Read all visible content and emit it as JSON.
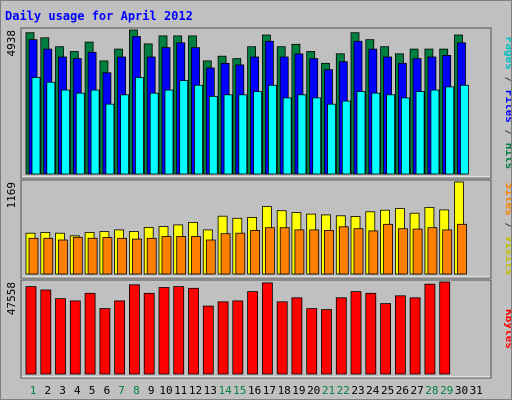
{
  "chart_data": {
    "type": "bar",
    "title": "Daily usage for April 2012",
    "categories": [
      "1",
      "2",
      "3",
      "4",
      "5",
      "6",
      "7",
      "8",
      "9",
      "10",
      "11",
      "12",
      "13",
      "14",
      "15",
      "16",
      "17",
      "18",
      "19",
      "20",
      "21",
      "22",
      "23",
      "24",
      "25",
      "26",
      "27",
      "28",
      "29",
      "30",
      "31"
    ],
    "weekend_days": [
      "1",
      "7",
      "8",
      "14",
      "15",
      "21",
      "22",
      "28",
      "29"
    ],
    "panels": [
      {
        "id": "pages-files-hits",
        "max_label": "4938",
        "max_value": 4938,
        "series": [
          {
            "name": "Hits",
            "color": "#008040",
            "values": [
              4847,
              4670,
              4364,
              4202,
              4522,
              3877,
              4283,
              4938,
              4460,
              4735,
              4735,
              4735,
              3877,
              4040,
              3958,
              4364,
              4767,
              4364,
              4446,
              4202,
              3796,
              4121,
              4847,
              4605,
              4364,
              4121,
              4283,
              4283,
              4283,
              4767,
              null
            ]
          },
          {
            "name": "Files",
            "color": "#0000ff",
            "values": [
              4606,
              4282,
              4012,
              3958,
              4174,
              3472,
              4012,
              4714,
              4012,
              4336,
              4498,
              4336,
              3634,
              3796,
              3742,
              4012,
              4552,
              4012,
              4120,
              3958,
              3580,
              3850,
              4552,
              4282,
              4012,
              3796,
              3958,
              4012,
              4066,
              4498,
              null
            ]
          },
          {
            "name": "Pages",
            "color": "#00ffff",
            "values": [
              3310,
              3148,
              2878,
              2770,
              2878,
              2392,
              2716,
              3310,
              2770,
              2878,
              3202,
              3040,
              2662,
              2716,
              2716,
              2824,
              3040,
              2608,
              2716,
              2608,
              2392,
              2500,
              2824,
              2770,
              2716,
              2608,
              2824,
              2878,
              2986,
              3040,
              null
            ]
          }
        ]
      },
      {
        "id": "visits-sites",
        "max_label": "1169",
        "max_value": 1169,
        "series": [
          {
            "name": "Visits",
            "color": "#ffff00",
            "values": [
              518,
              528,
              518,
              486,
              528,
              539,
              560,
              539,
              592,
              602,
              624,
              656,
              560,
              734,
              708,
              719,
              856,
              804,
              782,
              761,
              751,
              740,
              730,
              790,
              811,
              832,
              772,
              846,
              814,
              1169,
              null
            ]
          },
          {
            "name": "Sites",
            "color": "#ff8000",
            "values": [
              454,
              454,
              432,
              466,
              454,
              464,
              454,
              444,
              454,
              476,
              476,
              476,
              432,
              512,
              518,
              554,
              588,
              588,
              560,
              560,
              554,
              600,
              576,
              548,
              632,
              576,
              570,
              588,
              560,
              632,
              null
            ]
          }
        ]
      },
      {
        "id": "kbytes",
        "max_label": "47558",
        "max_value": 47558,
        "series": [
          {
            "name": "KBytes",
            "color": "#ff0000",
            "values": [
              45200,
              43400,
              38900,
              37800,
              41700,
              33800,
              37800,
              46100,
              41700,
              44700,
              45200,
              44300,
              35100,
              37300,
              37800,
              42600,
              47100,
              37300,
              39400,
              33800,
              33300,
              39400,
              42600,
              41700,
              36400,
              40400,
              39400,
              46400,
              47558,
              null,
              null
            ]
          }
        ]
      }
    ],
    "side_labels": [
      {
        "parts": [
          {
            "text": "Pages",
            "color": "#00c0c0"
          },
          {
            "text": " / ",
            "color": "#404040"
          },
          {
            "text": "Files",
            "color": "#0000ff"
          },
          {
            "text": " / ",
            "color": "#404040"
          },
          {
            "text": "Hits",
            "color": "#008040"
          }
        ]
      },
      {
        "parts": [
          {
            "text": "Sites",
            "color": "#ff8000"
          },
          {
            "text": " / ",
            "color": "#404040"
          },
          {
            "text": "Visits",
            "color": "#c0c000"
          }
        ]
      },
      {
        "parts": [
          {
            "text": "KBytes",
            "color": "#ff0000"
          }
        ]
      }
    ],
    "colors": {
      "background": "#c0c0c0",
      "title": "#0000ff",
      "axis_text": "#000000",
      "weekend_text": "#008040"
    },
    "grid": false,
    "legend": "right-side vertical labels"
  }
}
